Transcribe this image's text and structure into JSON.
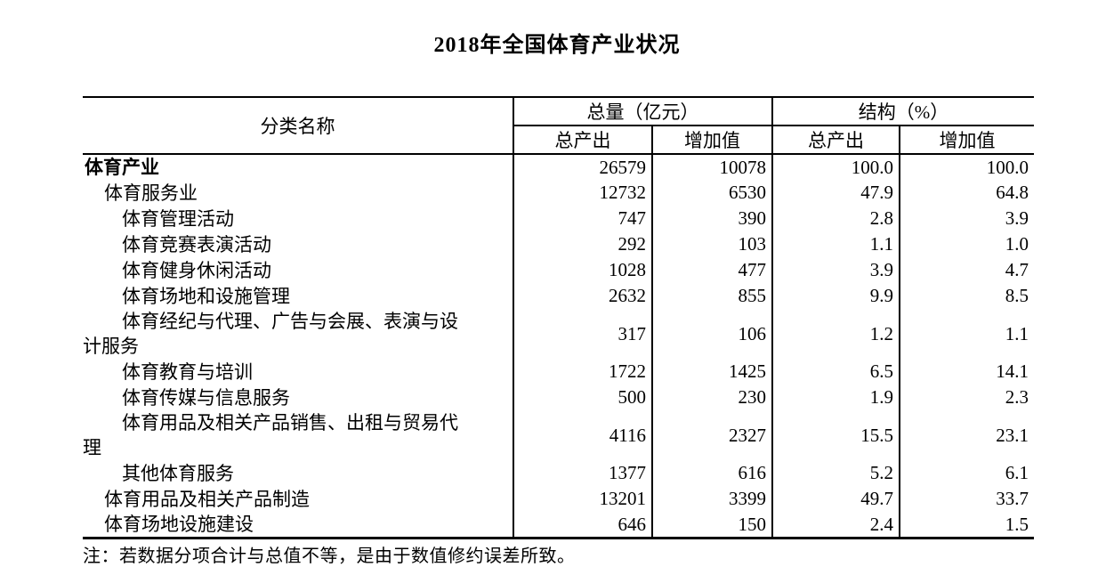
{
  "colors": {
    "ink": "#000000",
    "background": "#ffffff"
  },
  "title": "2018年全国体育产业状况",
  "table": {
    "header": {
      "category": "分类名称",
      "group1": "总量（亿元）",
      "group2": "结构（%）",
      "sub": [
        "总产出",
        "增加值",
        "总产出",
        "增加值"
      ]
    },
    "rows": [
      {
        "name": "体育产业",
        "indent": 0,
        "bold": true,
        "wrap": false,
        "values": [
          "26579",
          "10078",
          "100.0",
          "100.0"
        ]
      },
      {
        "name": "体育服务业",
        "indent": 1,
        "bold": false,
        "wrap": false,
        "values": [
          "12732",
          "6530",
          "47.9",
          "64.8"
        ]
      },
      {
        "name": "体育管理活动",
        "indent": 2,
        "bold": false,
        "wrap": false,
        "values": [
          "747",
          "390",
          "2.8",
          "3.9"
        ]
      },
      {
        "name": "体育竞赛表演活动",
        "indent": 2,
        "bold": false,
        "wrap": false,
        "values": [
          "292",
          "103",
          "1.1",
          "1.0"
        ]
      },
      {
        "name": "体育健身休闲活动",
        "indent": 2,
        "bold": false,
        "wrap": false,
        "values": [
          "1028",
          "477",
          "3.9",
          "4.7"
        ]
      },
      {
        "name": "体育场地和设施管理",
        "indent": 2,
        "bold": false,
        "wrap": false,
        "values": [
          "2632",
          "855",
          "9.9",
          "8.5"
        ]
      },
      {
        "name": "体育经纪与代理、广告与会展、表演与设计服务",
        "indent": 2,
        "bold": false,
        "wrap": true,
        "values": [
          "317",
          "106",
          "1.2",
          "1.1"
        ]
      },
      {
        "name": "体育教育与培训",
        "indent": 2,
        "bold": false,
        "wrap": false,
        "values": [
          "1722",
          "1425",
          "6.5",
          "14.1"
        ]
      },
      {
        "name": "体育传媒与信息服务",
        "indent": 2,
        "bold": false,
        "wrap": false,
        "values": [
          "500",
          "230",
          "1.9",
          "2.3"
        ]
      },
      {
        "name": "体育用品及相关产品销售、出租与贸易代理",
        "indent": 2,
        "bold": false,
        "wrap": true,
        "values": [
          "4116",
          "2327",
          "15.5",
          "23.1"
        ]
      },
      {
        "name": "其他体育服务",
        "indent": 2,
        "bold": false,
        "wrap": false,
        "values": [
          "1377",
          "616",
          "5.2",
          "6.1"
        ]
      },
      {
        "name": "体育用品及相关产品制造",
        "indent": 1,
        "bold": false,
        "wrap": false,
        "values": [
          "13201",
          "3399",
          "49.7",
          "33.7"
        ]
      },
      {
        "name": "体育场地设施建设",
        "indent": 1,
        "bold": false,
        "wrap": false,
        "values": [
          "646",
          "150",
          "2.4",
          "1.5"
        ]
      }
    ]
  },
  "note": "注：若数据分项合计与总值不等，是由于数值修约误差所致。"
}
